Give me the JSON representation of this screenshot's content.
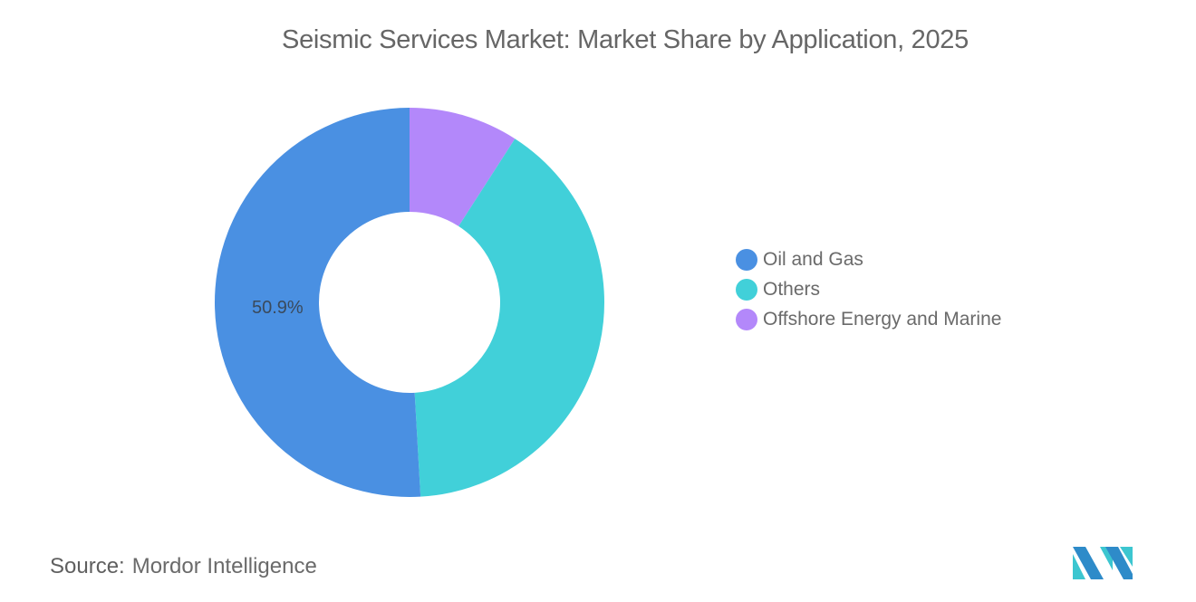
{
  "header": {
    "title": "Seismic Services Market: Market Share by Application, 2025"
  },
  "legend": {
    "items": [
      {
        "label": "Oil and Gas",
        "color": "#4A90E2"
      },
      {
        "label": "Others",
        "color": "#41D0D9"
      },
      {
        "label": "Offshore Energy and Marine",
        "color": "#B388FA"
      }
    ]
  },
  "footer": {
    "source_label": "Source:",
    "source_value": "Mordor Intelligence"
  },
  "chart_data": {
    "type": "pie",
    "subtype": "donut",
    "title": "Seismic Services Market: Market Share by Application, 2025",
    "categories": [
      "Oil and Gas",
      "Others",
      "Offshore Energy and Marine"
    ],
    "values": [
      50.9,
      40.0,
      9.1
    ],
    "colors": [
      "#4A90E2",
      "#41D0D9",
      "#B388FA"
    ],
    "data_labels": [
      {
        "category": "Oil and Gas",
        "text": "50.9%"
      }
    ],
    "legend_position": "right",
    "unit": "%"
  }
}
